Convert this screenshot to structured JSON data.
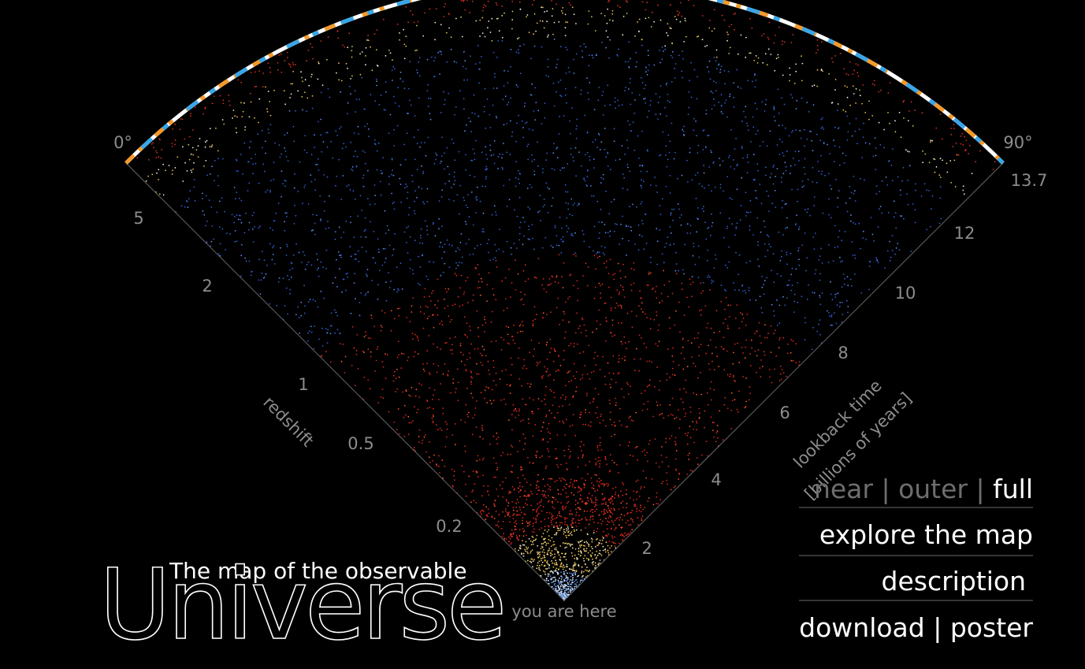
{
  "angle_labels": {
    "left": "0°",
    "right": "90°"
  },
  "redshift_axis": {
    "label": "redshift",
    "ticks": [
      "5",
      "2",
      "1",
      "0.5",
      "0.2"
    ]
  },
  "lookback_axis": {
    "label": "lookback time",
    "unit": "[billions of years]",
    "ticks": [
      "13.7",
      "12",
      "10",
      "8",
      "6",
      "4",
      "2"
    ]
  },
  "origin_label": "you are here",
  "title": {
    "subtitle": "The map of the observable",
    "main": "Universe"
  },
  "menu": {
    "separator": "|",
    "views": [
      "near",
      "outer",
      "full"
    ],
    "explore": "explore the map",
    "description": "description",
    "download": "download",
    "poster": "poster"
  }
}
